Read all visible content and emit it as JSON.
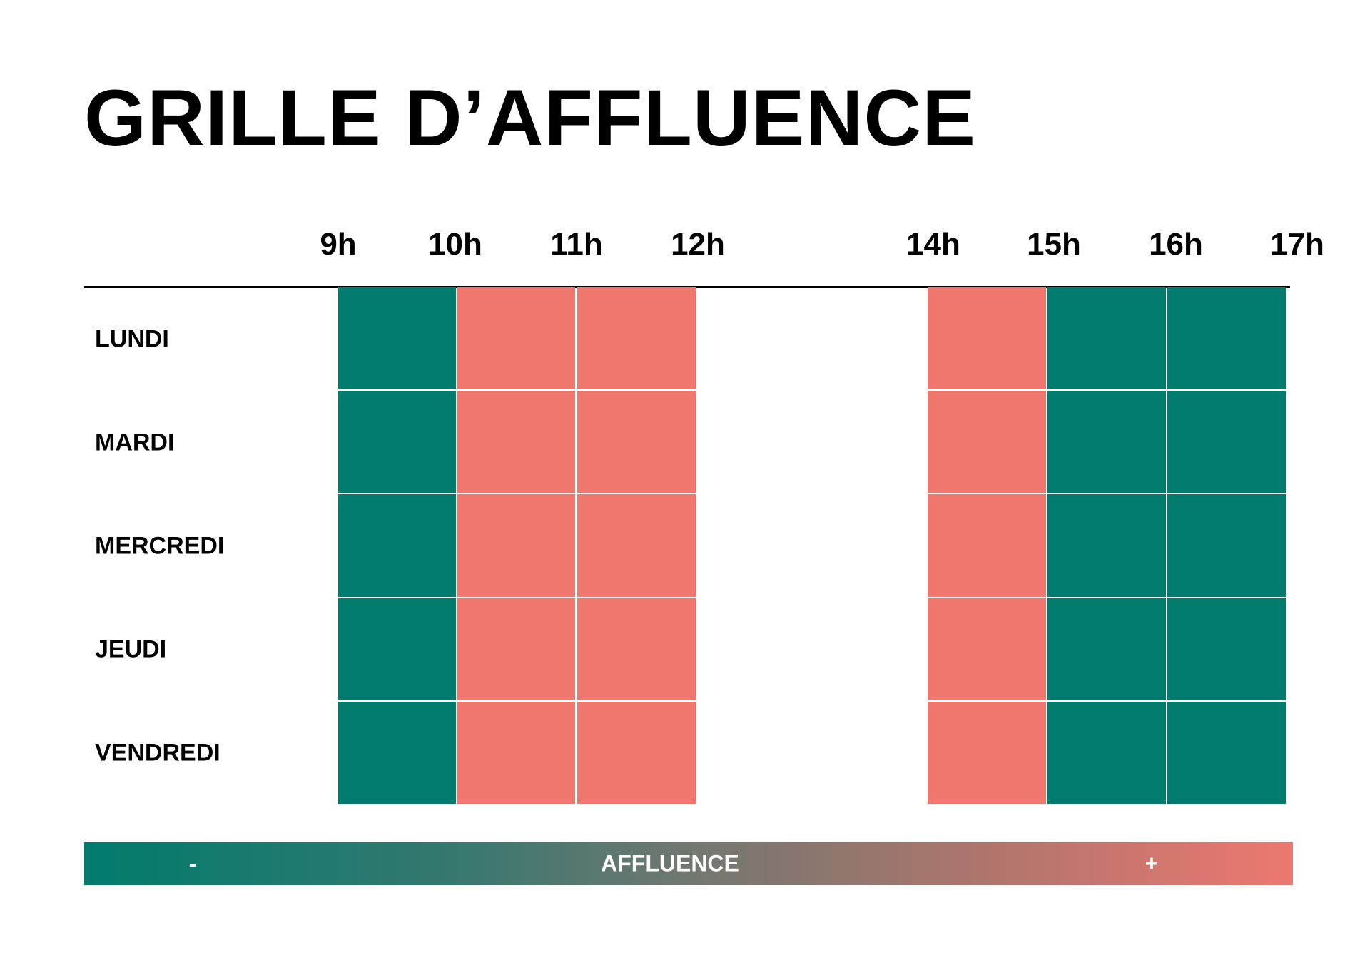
{
  "title": "GRILLE D’AFFLUENCE",
  "chart_data": {
    "type": "heatmap",
    "title": "GRILLE D’AFFLUENCE",
    "hour_labels": [
      "9h",
      "10h",
      "11h",
      "12h",
      "14h",
      "15h",
      "16h",
      "17h"
    ],
    "days": [
      "LUNDI",
      "MARDI",
      "MERCREDI",
      "JEUDI",
      "VENDREDI"
    ],
    "slots": [
      "9h-10h",
      "10h-11h",
      "11h-12h",
      "14h-15h",
      "15h-16h",
      "16h-17h"
    ],
    "levels": [
      [
        "low",
        "high",
        "high",
        "high",
        "low",
        "low"
      ],
      [
        "low",
        "high",
        "high",
        "high",
        "low",
        "low"
      ],
      [
        "low",
        "high",
        "high",
        "high",
        "low",
        "low"
      ],
      [
        "low",
        "high",
        "high",
        "high",
        "low",
        "low"
      ],
      [
        "low",
        "high",
        "high",
        "high",
        "low",
        "low"
      ]
    ],
    "colors": {
      "low": "#017b6e",
      "high": "#ef776e"
    },
    "legend": {
      "label": "AFFLUENCE",
      "min_label": "-",
      "max_label": "+"
    }
  }
}
